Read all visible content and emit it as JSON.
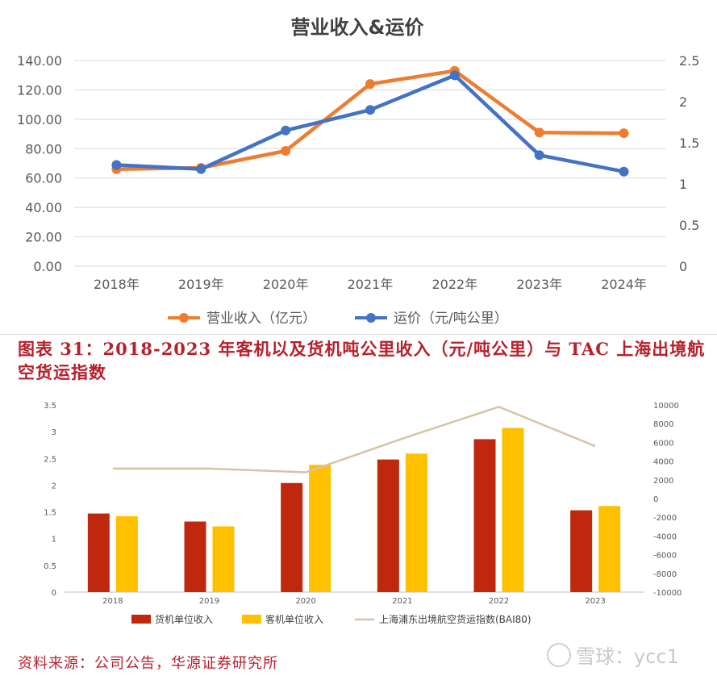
{
  "chart_data": [
    {
      "type": "line",
      "title": "营业收入&运价",
      "categories": [
        "2018年",
        "2019年",
        "2020年",
        "2021年",
        "2022年",
        "2023年",
        "2024年"
      ],
      "left_axis": {
        "min": 0,
        "max": 140,
        "step": 20,
        "tick_labels": [
          "0.00",
          "20.00",
          "40.00",
          "60.00",
          "80.00",
          "100.00",
          "120.00",
          "140.00"
        ]
      },
      "right_axis": {
        "min": 0,
        "max": 2.5,
        "step": 0.5,
        "tick_labels": [
          "0",
          "0.5",
          "1",
          "1.5",
          "2",
          "2.5"
        ]
      },
      "series": [
        {
          "name": "营业收入（亿元）",
          "axis": "left",
          "color": "#ed7d31",
          "values": [
            66.0,
            67.0,
            78.5,
            124.0,
            133.0,
            91.0,
            90.5
          ]
        },
        {
          "name": "运价（元/吨公里）",
          "axis": "right",
          "color": "#4472c4",
          "values": [
            1.23,
            1.18,
            1.65,
            1.9,
            2.32,
            1.35,
            1.15
          ]
        }
      ],
      "grid": true,
      "legend": "bottom"
    },
    {
      "type": "bar",
      "categories": [
        "2018",
        "2019",
        "2020",
        "2021",
        "2022",
        "2023"
      ],
      "left_axis": {
        "min": 0,
        "max": 3.5,
        "step": 0.5,
        "tick_labels": [
          "0",
          "0.5",
          "1",
          "1.5",
          "2",
          "2.5",
          "3",
          "3.5"
        ]
      },
      "right_axis": {
        "min": -10000,
        "max": 10000,
        "step": 2000,
        "tick_labels": [
          "-10000",
          "-8000",
          "-6000",
          "-4000",
          "-2000",
          "0",
          "2000",
          "4000",
          "6000",
          "8000",
          "10000"
        ]
      },
      "series": [
        {
          "name": "货机单位收入",
          "kind": "bar",
          "axis": "left",
          "color": "#c0280e",
          "values": [
            1.47,
            1.32,
            2.04,
            2.48,
            2.86,
            1.53
          ]
        },
        {
          "name": "客机单位收入",
          "kind": "bar",
          "axis": "left",
          "color": "#ffc000",
          "values": [
            1.42,
            1.23,
            2.38,
            2.59,
            3.07,
            1.61
          ]
        },
        {
          "name": "上海浦东出境航空货运指数(BAI80)",
          "kind": "line",
          "axis": "right",
          "color": "#d8c3a5",
          "values": [
            3200,
            3200,
            2800,
            6400,
            9800,
            5600
          ]
        }
      ],
      "grid": false,
      "legend": "bottom"
    }
  ],
  "caption": "图表 31：2018-2023 年客机以及货机吨公里收入（元/吨公里）与 TAC 上海出境航空货运指数",
  "source": "资料来源：公司公告，华源证券研究所",
  "watermark": "雪球：ycc1"
}
